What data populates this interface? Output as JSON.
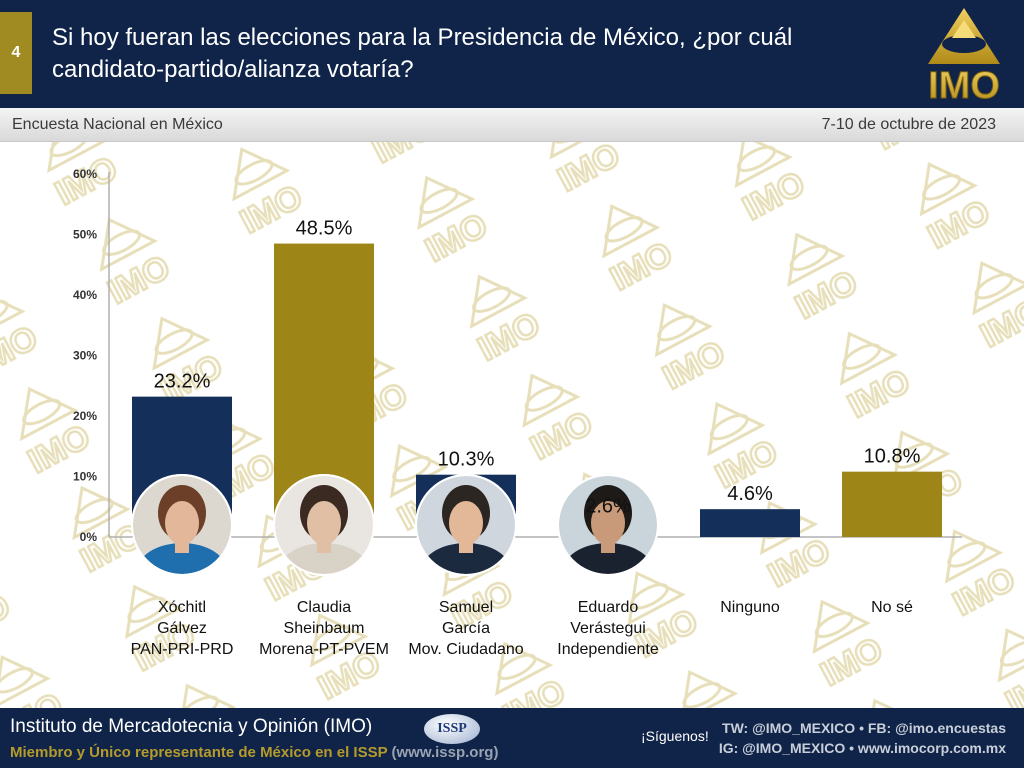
{
  "header": {
    "slide_number": "4",
    "title": "Si hoy fueran las elecciones para la Presidencia de México, ¿por cuál candidato-partido/alianza votaría?",
    "logo_text": "IMO"
  },
  "subheader": {
    "survey": "Encuesta Nacional en México",
    "dates": "7-10 de octubre de 2023"
  },
  "colors": {
    "navy": "#14305a",
    "gold": "#9e8517",
    "header_bg": "#0f2448"
  },
  "chart_data": {
    "type": "bar",
    "categories": [
      [
        "Xóchitl",
        "Gálvez",
        "PAN-PRI-PRD"
      ],
      [
        "Claudia",
        "Sheinbaum",
        "Morena-PT-PVEM"
      ],
      [
        "Samuel",
        "García",
        "Mov. Ciudadano"
      ],
      [
        "Eduardo",
        "Verástegui",
        "Independiente"
      ],
      [
        "Ninguno"
      ],
      [
        "No sé"
      ]
    ],
    "values": [
      23.2,
      48.5,
      10.3,
      2.6,
      4.6,
      10.8
    ],
    "data_labels": [
      "23.2%",
      "48.5%",
      "10.3%",
      "2.6%",
      "4.6%",
      "10.8%"
    ],
    "bar_colors": [
      "#14305a",
      "#9e8517",
      "#14305a",
      "#9e8517",
      "#14305a",
      "#9e8517"
    ],
    "has_photo": [
      true,
      true,
      true,
      true,
      false,
      false
    ],
    "yticks": [
      "0%",
      "10%",
      "20%",
      "30%",
      "40%",
      "50%",
      "60%"
    ],
    "ylim": [
      0,
      60
    ],
    "grid": false
  },
  "footer": {
    "org": "Instituto de Mercadotecnia y Opinión (IMO)",
    "member": "Miembro y Único representante de México en el ISSP",
    "member_url": "(www.issp.org)",
    "issp_badge": "ISSP",
    "follow": "¡Síguenos!",
    "social_line1": "TW: @IMO_MEXICO  •  FB: @imo.encuestas",
    "social_line2": "IG: @IMO_MEXICO  •  www.imocorp.com.mx"
  }
}
